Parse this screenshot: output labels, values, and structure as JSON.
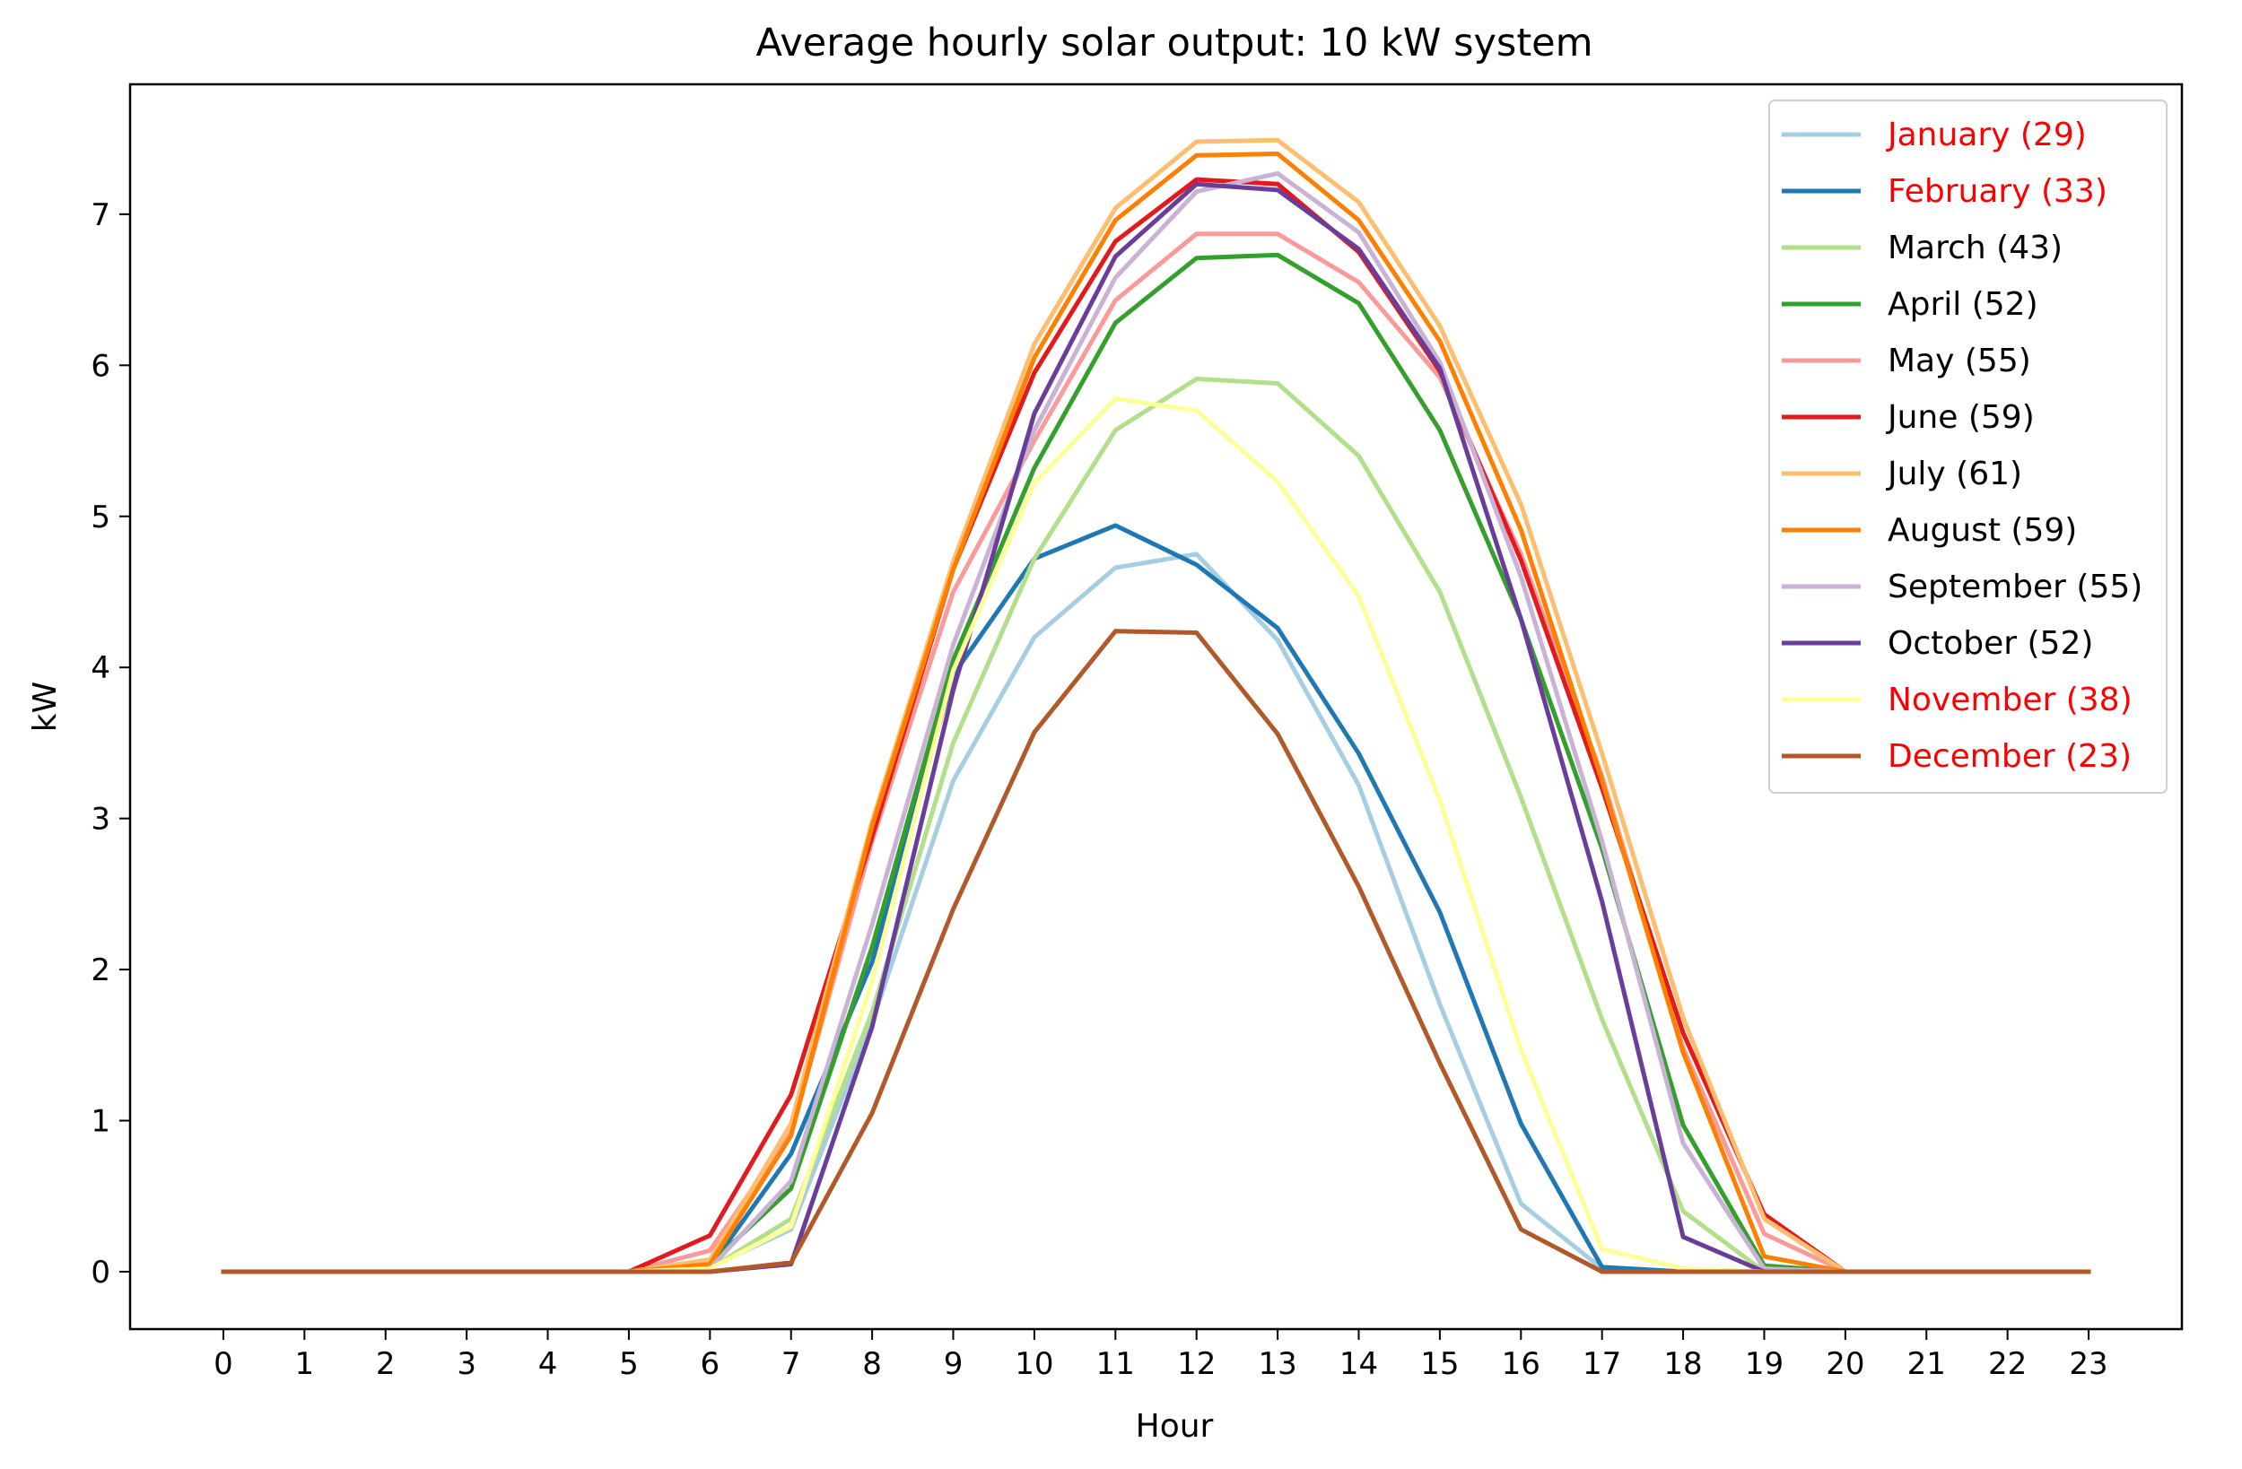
{
  "chart_data": {
    "type": "line",
    "title": "Average hourly solar output: 10 kW system",
    "xlabel": "Hour",
    "ylabel": "kW",
    "x": [
      0,
      1,
      2,
      3,
      4,
      5,
      6,
      7,
      8,
      9,
      10,
      11,
      12,
      13,
      14,
      15,
      16,
      17,
      18,
      19,
      20,
      21,
      22,
      23
    ],
    "xticks": [
      "0",
      "1",
      "2",
      "3",
      "4",
      "5",
      "6",
      "7",
      "8",
      "9",
      "10",
      "11",
      "12",
      "13",
      "14",
      "15",
      "16",
      "17",
      "18",
      "19",
      "20",
      "21",
      "22",
      "23"
    ],
    "yticks": [
      "0",
      "1",
      "2",
      "3",
      "4",
      "5",
      "6",
      "7"
    ],
    "xlim": [
      -1.15,
      24.15
    ],
    "ylim": [
      -0.38,
      7.86
    ],
    "grid": false,
    "legend_position": "upper right",
    "series": [
      {
        "name": "January (29)",
        "color": "#a6cee3",
        "legend_text_color": "#ff0000",
        "values": [
          0,
          0,
          0,
          0,
          0,
          0,
          0.03,
          0.28,
          1.65,
          3.25,
          4.2,
          4.66,
          4.75,
          4.18,
          3.22,
          1.77,
          0.45,
          0.02,
          0,
          0,
          0,
          0,
          0,
          0
        ]
      },
      {
        "name": "February (33)",
        "color": "#1f78b4",
        "legend_text_color": "#ff0000",
        "values": [
          0,
          0,
          0,
          0,
          0,
          0,
          0.03,
          0.78,
          2.05,
          3.95,
          4.72,
          4.94,
          4.68,
          4.26,
          3.43,
          2.38,
          0.98,
          0.03,
          0,
          0,
          0,
          0,
          0,
          0
        ]
      },
      {
        "name": "March (43)",
        "color": "#b2df8a",
        "legend_text_color": "#000000",
        "values": [
          0,
          0,
          0,
          0,
          0,
          0,
          0.02,
          0.35,
          1.72,
          3.5,
          4.72,
          5.57,
          5.91,
          5.88,
          5.4,
          4.5,
          3.14,
          1.67,
          0.4,
          0,
          0,
          0,
          0,
          0
        ]
      },
      {
        "name": "April (52)",
        "color": "#33a02c",
        "legend_text_color": "#000000",
        "values": [
          0,
          0,
          0,
          0,
          0,
          0,
          0.05,
          0.55,
          2.15,
          4.05,
          5.32,
          6.28,
          6.71,
          6.73,
          6.41,
          5.57,
          4.32,
          2.8,
          0.97,
          0.04,
          0,
          0,
          0,
          0
        ]
      },
      {
        "name": "May (55)",
        "color": "#fb9a99",
        "legend_text_color": "#000000",
        "values": [
          0,
          0,
          0,
          0,
          0,
          0,
          0.14,
          0.92,
          2.85,
          4.5,
          5.5,
          6.43,
          6.87,
          6.87,
          6.55,
          5.92,
          4.75,
          3.28,
          1.48,
          0.25,
          0,
          0,
          0,
          0
        ]
      },
      {
        "name": "June (59)",
        "color": "#e31a1c",
        "legend_text_color": "#000000",
        "values": [
          0,
          0,
          0,
          0,
          0,
          0,
          0.24,
          1.17,
          2.88,
          4.65,
          5.95,
          6.82,
          7.23,
          7.2,
          6.75,
          5.96,
          4.71,
          3.2,
          1.58,
          0.38,
          0,
          0,
          0,
          0
        ]
      },
      {
        "name": "July (61)",
        "color": "#fdbf6f",
        "legend_text_color": "#000000",
        "values": [
          0,
          0,
          0,
          0,
          0,
          0,
          0.08,
          0.98,
          2.98,
          4.7,
          6.14,
          7.04,
          7.48,
          7.49,
          7.08,
          6.26,
          5.08,
          3.43,
          1.68,
          0.35,
          0,
          0,
          0,
          0
        ]
      },
      {
        "name": "August (59)",
        "color": "#ff7f00",
        "legend_text_color": "#000000",
        "values": [
          0,
          0,
          0,
          0,
          0,
          0,
          0.05,
          0.9,
          2.95,
          4.65,
          6.05,
          6.96,
          7.39,
          7.4,
          6.96,
          6.16,
          4.91,
          3.25,
          1.45,
          0.1,
          0,
          0,
          0,
          0
        ]
      },
      {
        "name": "September (55)",
        "color": "#cab2d6",
        "legend_text_color": "#000000",
        "values": [
          0,
          0,
          0,
          0,
          0,
          0,
          0.02,
          0.6,
          2.3,
          4.15,
          5.57,
          6.58,
          7.15,
          7.27,
          6.88,
          6.02,
          4.6,
          2.85,
          0.85,
          0.02,
          0,
          0,
          0,
          0
        ]
      },
      {
        "name": "October (52)",
        "color": "#6a3d9a",
        "legend_text_color": "#000000",
        "values": [
          0,
          0,
          0,
          0,
          0,
          0,
          0,
          0.05,
          1.62,
          3.85,
          5.68,
          6.72,
          7.2,
          7.16,
          6.77,
          5.98,
          4.32,
          2.45,
          0.23,
          0,
          0,
          0,
          0,
          0
        ]
      },
      {
        "name": "November (38)",
        "color": "#ffff99",
        "legend_text_color": "#ff0000",
        "values": [
          0,
          0,
          0,
          0,
          0,
          0,
          0.02,
          0.3,
          1.92,
          3.98,
          5.22,
          5.78,
          5.7,
          5.23,
          4.47,
          3.12,
          1.47,
          0.15,
          0.02,
          0,
          0,
          0,
          0,
          0
        ]
      },
      {
        "name": "December (23)",
        "color": "#b15928",
        "legend_text_color": "#ff0000",
        "values": [
          0,
          0,
          0,
          0,
          0,
          0,
          0,
          0.06,
          1.05,
          2.4,
          3.57,
          4.24,
          4.23,
          3.56,
          2.55,
          1.38,
          0.28,
          0,
          0,
          0,
          0,
          0,
          0,
          0
        ]
      }
    ]
  }
}
